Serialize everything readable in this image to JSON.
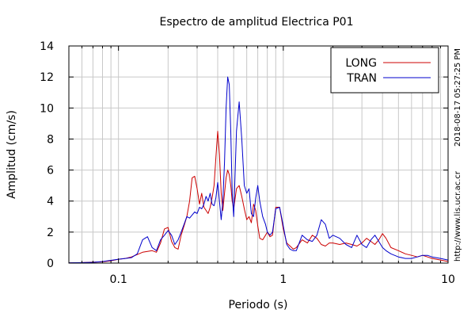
{
  "chart_data": {
    "type": "line",
    "title": "Espectro de amplitud Electrica P01",
    "xlabel": "Periodo (s)",
    "ylabel": "Amplitud (cm/s)",
    "xscale": "log",
    "xlim": [
      0.05,
      10
    ],
    "ylim": [
      0,
      14
    ],
    "xticks": [
      0.1,
      1,
      10
    ],
    "xtick_labels": [
      "0.1",
      "1",
      "10"
    ],
    "yticks": [
      0,
      2,
      4,
      6,
      8,
      10,
      12,
      14
    ],
    "ytick_labels": [
      "0",
      "2",
      "4",
      "6",
      "8",
      "10",
      "12",
      "14"
    ],
    "grid": true,
    "legend_position": "top-right",
    "timestamp": "2018-08-17 05:27:25 PM",
    "source_url": "http://www.lis.ucr.ac.cr",
    "series": [
      {
        "name": "LONG",
        "color": "#cc0000",
        "x": [
          0.05,
          0.06,
          0.07,
          0.08,
          0.09,
          0.1,
          0.11,
          0.12,
          0.13,
          0.14,
          0.15,
          0.16,
          0.17,
          0.18,
          0.19,
          0.2,
          0.21,
          0.22,
          0.23,
          0.24,
          0.25,
          0.26,
          0.27,
          0.28,
          0.29,
          0.3,
          0.31,
          0.32,
          0.33,
          0.34,
          0.35,
          0.36,
          0.37,
          0.38,
          0.39,
          0.4,
          0.41,
          0.42,
          0.43,
          0.44,
          0.45,
          0.46,
          0.47,
          0.48,
          0.49,
          0.5,
          0.52,
          0.54,
          0.56,
          0.58,
          0.6,
          0.62,
          0.64,
          0.66,
          0.68,
          0.7,
          0.72,
          0.75,
          0.78,
          0.8,
          0.83,
          0.86,
          0.9,
          0.95,
          1.0,
          1.05,
          1.1,
          1.15,
          1.2,
          1.3,
          1.4,
          1.5,
          1.6,
          1.7,
          1.8,
          1.9,
          2.0,
          2.2,
          2.4,
          2.6,
          2.8,
          3.0,
          3.2,
          3.4,
          3.6,
          3.8,
          4.0,
          4.2,
          4.5,
          5.0,
          5.5,
          6.0,
          6.5,
          7.0,
          7.5,
          8.0,
          9.0,
          10.0
        ],
        "y": [
          0.02,
          0.03,
          0.06,
          0.08,
          0.15,
          0.25,
          0.3,
          0.4,
          0.55,
          0.7,
          0.75,
          0.8,
          0.7,
          1.3,
          2.2,
          2.3,
          1.4,
          1.0,
          0.9,
          1.8,
          2.4,
          3.0,
          4.0,
          5.5,
          5.6,
          4.8,
          3.8,
          4.5,
          3.6,
          3.4,
          3.2,
          3.6,
          4.2,
          5.0,
          6.8,
          8.5,
          7.0,
          4.5,
          3.4,
          4.5,
          5.5,
          6.0,
          5.7,
          5.0,
          4.0,
          3.5,
          4.8,
          5.0,
          4.3,
          3.5,
          2.8,
          3.0,
          2.6,
          3.8,
          3.4,
          2.4,
          1.6,
          1.5,
          1.8,
          2.0,
          1.7,
          1.8,
          3.6,
          3.6,
          2.2,
          1.3,
          1.1,
          0.9,
          1.0,
          1.5,
          1.3,
          1.8,
          1.6,
          1.2,
          1.1,
          1.3,
          1.3,
          1.2,
          1.3,
          1.2,
          1.1,
          1.3,
          1.6,
          1.4,
          1.2,
          1.5,
          1.9,
          1.6,
          1.0,
          0.8,
          0.6,
          0.5,
          0.4,
          0.5,
          0.4,
          0.3,
          0.2,
          0.1
        ]
      },
      {
        "name": "TRAN",
        "color": "#0000cc",
        "x": [
          0.05,
          0.06,
          0.07,
          0.08,
          0.09,
          0.1,
          0.11,
          0.12,
          0.13,
          0.14,
          0.15,
          0.16,
          0.17,
          0.18,
          0.19,
          0.2,
          0.21,
          0.22,
          0.23,
          0.24,
          0.25,
          0.26,
          0.27,
          0.28,
          0.29,
          0.3,
          0.31,
          0.32,
          0.33,
          0.34,
          0.35,
          0.36,
          0.37,
          0.38,
          0.39,
          0.4,
          0.41,
          0.42,
          0.43,
          0.44,
          0.45,
          0.46,
          0.47,
          0.48,
          0.49,
          0.5,
          0.52,
          0.54,
          0.56,
          0.58,
          0.6,
          0.62,
          0.64,
          0.66,
          0.68,
          0.7,
          0.72,
          0.75,
          0.78,
          0.8,
          0.83,
          0.86,
          0.9,
          0.95,
          1.0,
          1.05,
          1.1,
          1.15,
          1.2,
          1.3,
          1.4,
          1.5,
          1.6,
          1.7,
          1.8,
          1.9,
          2.0,
          2.2,
          2.4,
          2.6,
          2.8,
          3.0,
          3.2,
          3.4,
          3.6,
          3.8,
          4.0,
          4.2,
          4.5,
          5.0,
          5.5,
          6.0,
          6.5,
          7.0,
          7.5,
          8.0,
          9.0,
          10.0
        ],
        "y": [
          0.02,
          0.03,
          0.05,
          0.1,
          0.18,
          0.25,
          0.3,
          0.35,
          0.6,
          1.5,
          1.7,
          1.0,
          0.8,
          1.5,
          1.8,
          2.1,
          1.8,
          1.2,
          1.5,
          2.0,
          2.5,
          3.0,
          2.9,
          3.1,
          3.3,
          3.2,
          3.6,
          3.5,
          3.8,
          4.3,
          4.0,
          4.5,
          3.8,
          3.7,
          4.2,
          5.2,
          4.0,
          2.8,
          4.0,
          6.5,
          10.0,
          12.0,
          11.5,
          8.5,
          4.5,
          3.0,
          8.5,
          10.4,
          8.0,
          5.0,
          4.5,
          4.8,
          3.2,
          3.0,
          4.2,
          5.0,
          4.0,
          3.0,
          2.5,
          2.0,
          1.8,
          2.0,
          3.5,
          3.6,
          2.4,
          1.2,
          0.9,
          0.8,
          0.8,
          1.8,
          1.5,
          1.4,
          1.8,
          2.8,
          2.5,
          1.6,
          1.8,
          1.6,
          1.2,
          1.0,
          1.8,
          1.2,
          1.0,
          1.5,
          1.8,
          1.4,
          1.0,
          0.8,
          0.6,
          0.4,
          0.3,
          0.3,
          0.4,
          0.5,
          0.5,
          0.4,
          0.3,
          0.2
        ]
      }
    ]
  }
}
